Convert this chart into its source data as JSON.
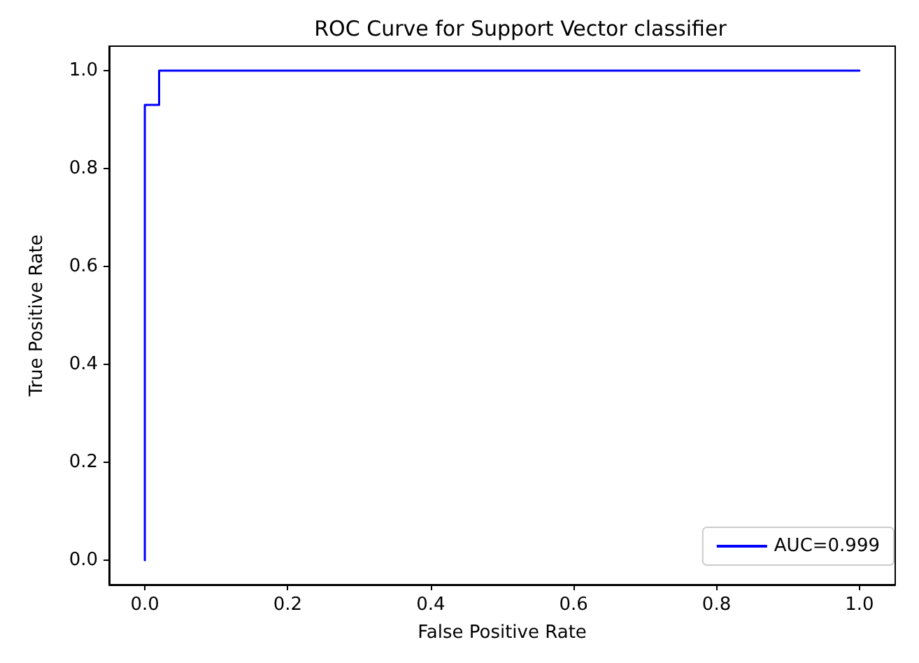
{
  "chart_data": {
    "type": "line",
    "title": "ROC Curve for Support Vector classifier",
    "xlabel": "False Positive Rate",
    "ylabel": "True Positive Rate",
    "series": [
      {
        "name": "AUC=0.999",
        "color": "#0000ff",
        "x": [
          0,
          0,
          0.02,
          0.02,
          1
        ],
        "values": [
          0,
          0.93,
          0.93,
          1,
          1
        ]
      }
    ],
    "xlim": [
      -0.05,
      1.05
    ],
    "ylim": [
      -0.05,
      1.05
    ],
    "xticks": [
      {
        "value": 0,
        "label": "0.0"
      },
      0.2,
      0.4,
      0.6,
      0.8,
      {
        "value": 1,
        "label": "1.0"
      }
    ],
    "yticks": [
      {
        "value": 0,
        "label": "0.0"
      },
      0.2,
      0.4,
      0.6,
      0.8,
      {
        "value": 1,
        "label": "1.0"
      }
    ],
    "grid": false,
    "legend": "bottom right",
    "marker": "none",
    "line_style": "solid"
  }
}
